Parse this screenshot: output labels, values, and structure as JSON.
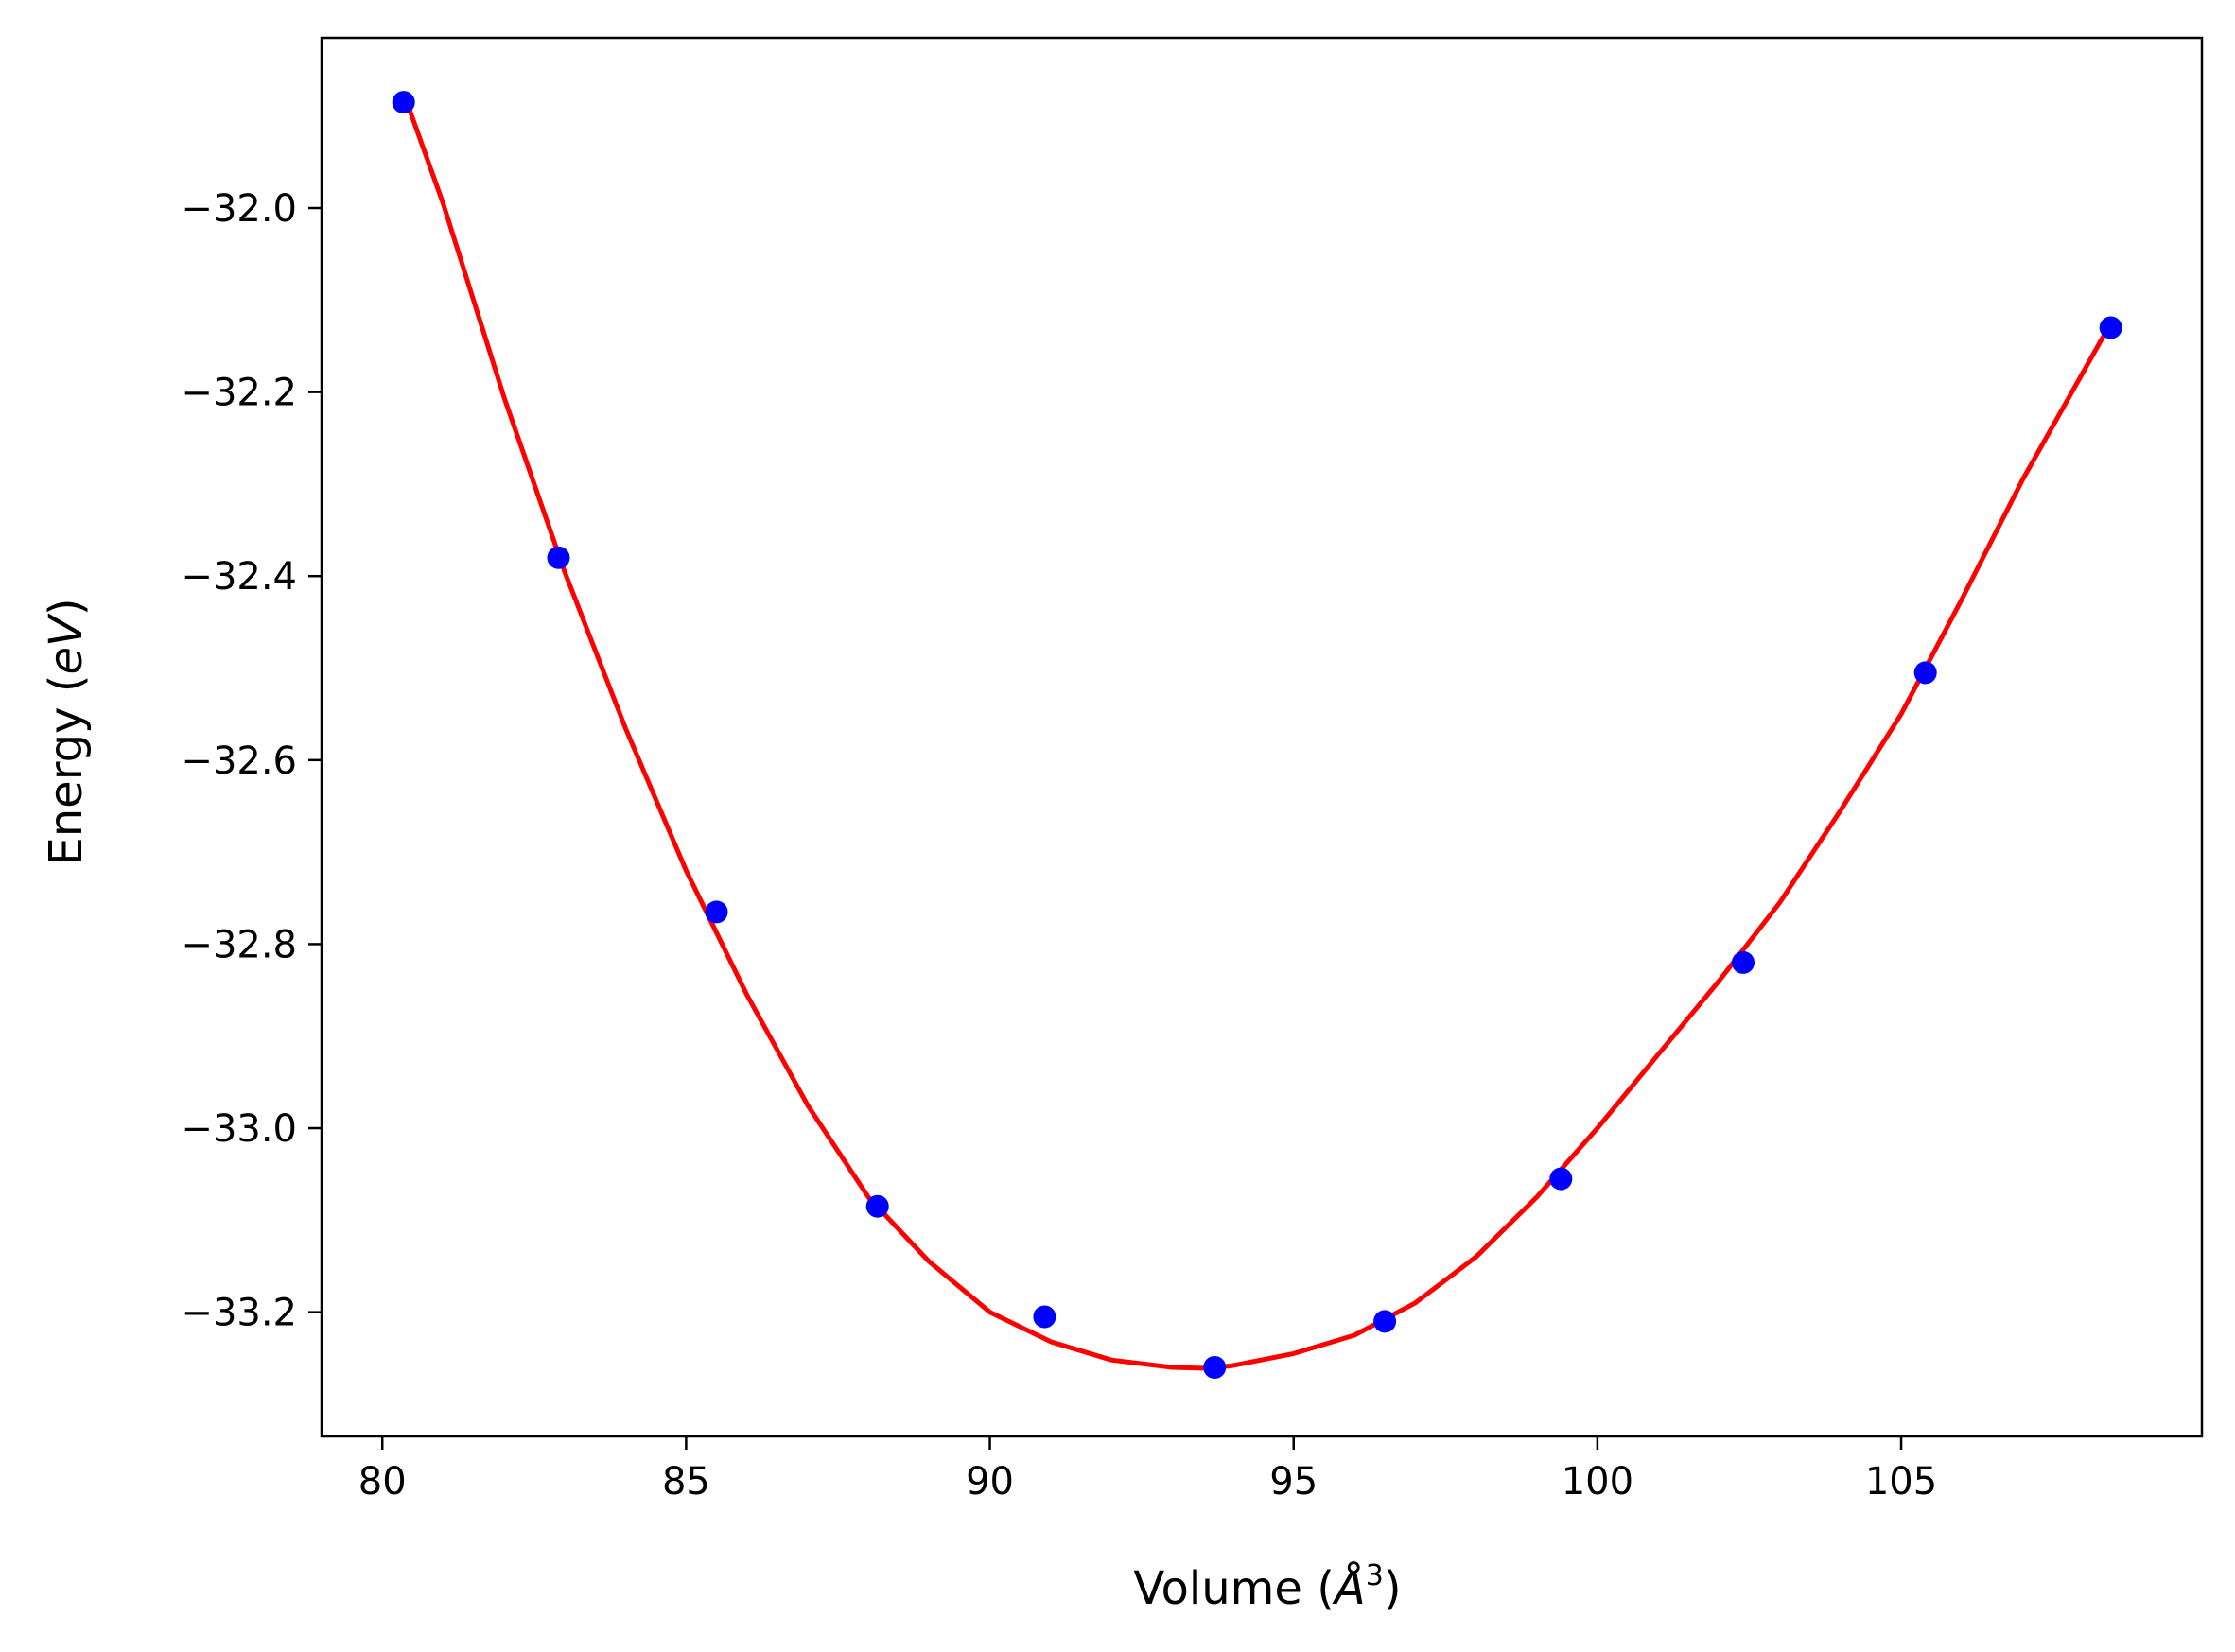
{
  "chart_data": {
    "type": "scatter",
    "title": "",
    "xlabel": {
      "prefix": "Volume (",
      "symbol": "Å",
      "exponent": "3",
      "suffix": ")"
    },
    "ylabel": {
      "prefix": "Energy (",
      "symbol": "eV",
      "suffix": ")"
    },
    "xlim": [
      79.0,
      109.95
    ],
    "ylim": [
      -33.335,
      -31.815
    ],
    "xticks": [
      80,
      85,
      90,
      95,
      100,
      105
    ],
    "xtick_labels": [
      "80",
      "85",
      "90",
      "95",
      "100",
      "105"
    ],
    "yticks": [
      -32.0,
      -32.2,
      -32.4,
      -32.6,
      -32.8,
      -33.0,
      -33.2
    ],
    "ytick_labels": [
      "−32.0",
      "−32.2",
      "−32.4",
      "−32.6",
      "−32.8",
      "−33.0",
      "−33.2"
    ],
    "grid": false,
    "series": [
      {
        "kind": "points",
        "color": "#0000ff",
        "x": [
          80.35,
          82.9,
          85.5,
          88.15,
          90.9,
          93.7,
          96.5,
          99.4,
          102.4,
          105.4,
          108.45
        ],
        "y": [
          -31.885,
          -32.38,
          -32.765,
          -33.085,
          -33.205,
          -33.26,
          -33.21,
          -33.055,
          -32.82,
          -32.505,
          -32.13
        ]
      },
      {
        "kind": "fit-line",
        "color": "#ff0000",
        "x": [
          80.35,
          81.0,
          82.0,
          83.0,
          84.0,
          85.0,
          86.0,
          87.0,
          88.0,
          89.0,
          90.0,
          91.0,
          92.0,
          93.0,
          93.6,
          94.0,
          95.0,
          96.0,
          97.0,
          98.0,
          99.0,
          100.0,
          101.0,
          102.0,
          103.0,
          104.0,
          105.0,
          106.0,
          107.0,
          108.45
        ],
        "y": [
          -31.875,
          -31.995,
          -32.205,
          -32.395,
          -32.565,
          -32.72,
          -32.855,
          -32.975,
          -33.075,
          -33.145,
          -33.2,
          -33.232,
          -33.252,
          -33.26,
          -33.261,
          -33.258,
          -33.245,
          -33.225,
          -33.19,
          -33.14,
          -33.075,
          -33.0,
          -32.92,
          -32.84,
          -32.755,
          -32.655,
          -32.55,
          -32.425,
          -32.295,
          -32.125
        ]
      }
    ]
  }
}
